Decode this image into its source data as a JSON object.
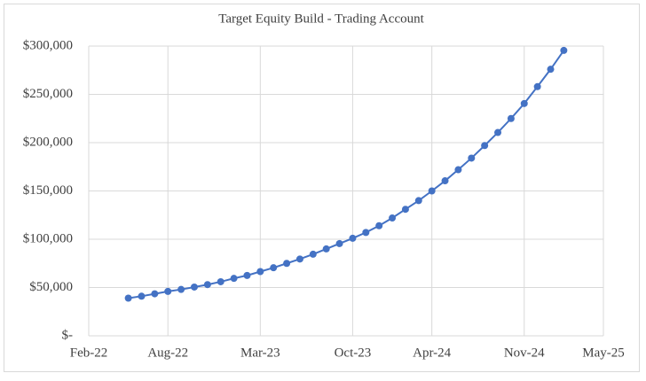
{
  "chart_data": {
    "type": "line",
    "title": "Target Equity Build - Trading Account",
    "x": [
      "2022-05",
      "2022-06",
      "2022-07",
      "2022-08",
      "2022-09",
      "2022-10",
      "2022-11",
      "2022-12",
      "2023-01",
      "2023-02",
      "2023-03",
      "2023-04",
      "2023-05",
      "2023-06",
      "2023-07",
      "2023-08",
      "2023-09",
      "2023-10",
      "2023-11",
      "2023-12",
      "2024-01",
      "2024-02",
      "2024-03",
      "2024-04",
      "2024-05",
      "2024-06",
      "2024-07",
      "2024-08",
      "2024-09",
      "2024-10",
      "2024-11",
      "2024-12",
      "2025-01",
      "2025-02"
    ],
    "series": [
      {
        "name": "Target Equity",
        "color": "#4472c4",
        "values": [
          39000,
          41000,
          43500,
          46000,
          48000,
          50500,
          53000,
          56000,
          59500,
          62500,
          66500,
          70500,
          75000,
          79500,
          84500,
          90000,
          95500,
          101000,
          107000,
          114000,
          122000,
          131000,
          140000,
          150000,
          160500,
          172000,
          184000,
          197000,
          210500,
          225000,
          240500,
          258000,
          276000,
          295500
        ]
      }
    ],
    "xlim": [
      "2022-02",
      "2025-05"
    ],
    "xticks": [
      {
        "value": "2022-02",
        "label": "Feb-22"
      },
      {
        "value": "2022-08",
        "label": "Aug-22"
      },
      {
        "value": "2023-03",
        "label": "Mar-23"
      },
      {
        "value": "2023-10",
        "label": "Oct-23"
      },
      {
        "value": "2024-04",
        "label": "Apr-24"
      },
      {
        "value": "2024-11",
        "label": "Nov-24"
      },
      {
        "value": "2025-05",
        "label": "May-25"
      }
    ],
    "ylim": [
      0,
      300000
    ],
    "yticks": [
      {
        "value": 0,
        "label": "$-"
      },
      {
        "value": 50000,
        "label": "$50,000"
      },
      {
        "value": 100000,
        "label": "$100,000"
      },
      {
        "value": 150000,
        "label": "$150,000"
      },
      {
        "value": 200000,
        "label": "$200,000"
      },
      {
        "value": 250000,
        "label": "$250,000"
      },
      {
        "value": 300000,
        "label": "$300,000"
      }
    ],
    "grid": true
  }
}
